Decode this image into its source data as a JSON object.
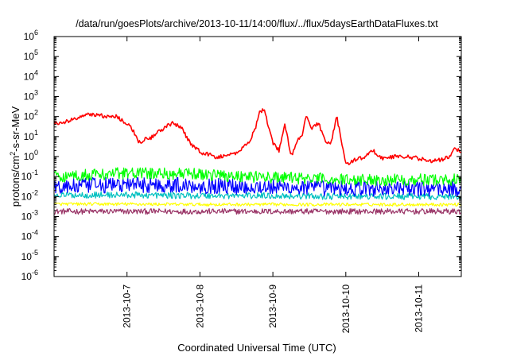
{
  "chart_data": {
    "type": "line",
    "title": "/data/run/goesPlots/archive/2013-10-11/14:00/flux/../flux/5daysEarthDataFluxes.txt",
    "xlabel": "Coordinated Universal Time (UTC)",
    "ylabel": {
      "base": "protons/cm",
      "sup": "2",
      "rest": "-s-sr-MeV"
    },
    "yscale": "log",
    "ylim": [
      1e-06,
      1000000.0
    ],
    "yticks": [
      {
        "value": 1e-06,
        "base": "10",
        "exp": "-6"
      },
      {
        "value": 1e-05,
        "base": "10",
        "exp": "-5"
      },
      {
        "value": 0.0001,
        "base": "10",
        "exp": "-4"
      },
      {
        "value": 0.001,
        "base": "10",
        "exp": "-3"
      },
      {
        "value": 0.01,
        "base": "10",
        "exp": "-2"
      },
      {
        "value": 0.1,
        "base": "10",
        "exp": "-1"
      },
      {
        "value": 1,
        "base": "10",
        "exp": "0"
      },
      {
        "value": 10.0,
        "base": "10",
        "exp": "1"
      },
      {
        "value": 100.0,
        "base": "10",
        "exp": "2"
      },
      {
        "value": 1000.0,
        "base": "10",
        "exp": "3"
      },
      {
        "value": 10000.0,
        "base": "10",
        "exp": "4"
      },
      {
        "value": 100000.0,
        "base": "10",
        "exp": "5"
      },
      {
        "value": 1000000.0,
        "base": "10",
        "exp": "6"
      }
    ],
    "xlim": [
      "2013-10-06T00:00",
      "2013-10-11T14:00"
    ],
    "xticks": [
      "2013-10-7",
      "2013-10-8",
      "2013-10-9",
      "2013-10-10",
      "2013-10-11"
    ],
    "xtick_values": [
      "2013-10-07T00:00",
      "2013-10-08T00:00",
      "2013-10-09T00:00",
      "2013-10-10T00:00",
      "2013-10-11T00:00"
    ],
    "grid": false,
    "legend": "none",
    "series": [
      {
        "color": "#ff0000",
        "x": [
          "2013-10-06T00:00",
          "2013-10-06T05:00",
          "2013-10-06T10:00",
          "2013-10-06T14:00",
          "2013-10-06T18:00",
          "2013-10-06T20:00",
          "2013-10-06T22:00",
          "2013-10-07T01:00",
          "2013-10-07T04:00",
          "2013-10-07T06:00",
          "2013-10-07T08:00",
          "2013-10-07T11:00",
          "2013-10-07T15:00",
          "2013-10-07T18:00",
          "2013-10-07T21:00",
          "2013-10-08T01:00",
          "2013-10-08T06:00",
          "2013-10-08T12:00",
          "2013-10-08T16:00",
          "2013-10-08T18:00",
          "2013-10-08T19:30",
          "2013-10-08T21:00",
          "2013-10-09T00:00",
          "2013-10-09T02:00",
          "2013-10-09T04:00",
          "2013-10-09T06:00",
          "2013-10-09T08:00",
          "2013-10-09T09:30",
          "2013-10-09T11:00",
          "2013-10-09T13:00",
          "2013-10-09T15:00",
          "2013-10-09T17:00",
          "2013-10-09T19:00",
          "2013-10-09T21:00",
          "2013-10-09T22:30",
          "2013-10-10T00:00",
          "2013-10-10T03:00",
          "2013-10-10T06:00",
          "2013-10-10T09:00",
          "2013-10-10T12:00",
          "2013-10-10T16:00",
          "2013-10-10T20:00",
          "2013-10-11T00:00",
          "2013-10-11T04:00",
          "2013-10-11T08:00",
          "2013-10-11T10:00",
          "2013-10-11T12:00",
          "2013-10-11T14:00"
        ],
        "y": [
          45,
          60,
          120,
          130,
          90,
          110,
          70,
          40,
          5,
          8,
          9,
          20,
          50,
          25,
          4,
          1.5,
          0.9,
          1.5,
          5,
          20,
          150,
          250,
          5,
          2,
          40,
          1,
          6,
          10,
          100,
          25,
          50,
          7,
          4,
          100,
          7,
          0.4,
          0.7,
          0.9,
          2,
          0.8,
          1.0,
          1.0,
          0.8,
          0.6,
          0.7,
          1.0,
          2.5,
          1.8
        ]
      },
      {
        "color": "#00ff00",
        "x": [
          "2013-10-06T00:00",
          "2013-10-07T00:00",
          "2013-10-08T00:00",
          "2013-10-09T00:00",
          "2013-10-10T00:00",
          "2013-10-11T00:00",
          "2013-10-11T14:00"
        ],
        "y": [
          0.1,
          0.15,
          0.13,
          0.09,
          0.07,
          0.07,
          0.07
        ]
      },
      {
        "color": "#0000ff",
        "x": [
          "2013-10-06T00:00",
          "2013-10-07T00:00",
          "2013-10-08T00:00",
          "2013-10-09T00:00",
          "2013-10-10T00:00",
          "2013-10-11T00:00",
          "2013-10-11T14:00"
        ],
        "y": [
          0.03,
          0.04,
          0.035,
          0.03,
          0.025,
          0.025,
          0.025
        ]
      },
      {
        "color": "#00c0c0",
        "x": [
          "2013-10-06T00:00",
          "2013-10-07T00:00",
          "2013-10-08T00:00",
          "2013-10-09T00:00",
          "2013-10-10T00:00",
          "2013-10-11T00:00",
          "2013-10-11T14:00"
        ],
        "y": [
          0.012,
          0.012,
          0.011,
          0.011,
          0.01,
          0.01,
          0.01
        ]
      },
      {
        "color": "#ffff00",
        "x": [
          "2013-10-06T00:00",
          "2013-10-07T00:00",
          "2013-10-08T00:00",
          "2013-10-09T00:00",
          "2013-10-10T00:00",
          "2013-10-11T00:00",
          "2013-10-11T14:00"
        ],
        "y": [
          0.0042,
          0.0042,
          0.004,
          0.004,
          0.004,
          0.004,
          0.004
        ]
      },
      {
        "color": "#993366",
        "x": [
          "2013-10-06T00:00",
          "2013-10-07T00:00",
          "2013-10-08T00:00",
          "2013-10-09T00:00",
          "2013-10-10T00:00",
          "2013-10-11T00:00",
          "2013-10-11T14:00"
        ],
        "y": [
          0.0018,
          0.0018,
          0.0018,
          0.0018,
          0.0018,
          0.0018,
          0.0018
        ]
      }
    ]
  }
}
